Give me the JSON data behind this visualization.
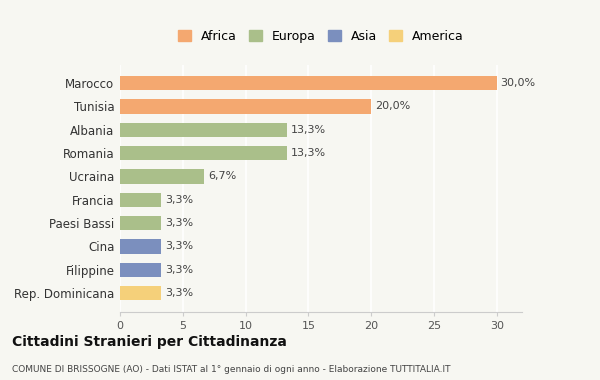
{
  "categories": [
    "Marocco",
    "Tunisia",
    "Albania",
    "Romania",
    "Ucraina",
    "Francia",
    "Paesi Bassi",
    "Cina",
    "Filippine",
    "Rep. Dominicana"
  ],
  "values": [
    30.0,
    20.0,
    13.3,
    13.3,
    6.7,
    3.3,
    3.3,
    3.3,
    3.3,
    3.3
  ],
  "labels": [
    "30,0%",
    "20,0%",
    "13,3%",
    "13,3%",
    "6,7%",
    "3,3%",
    "3,3%",
    "3,3%",
    "3,3%",
    "3,3%"
  ],
  "colors": [
    "#F4A870",
    "#F4A870",
    "#AABF8A",
    "#AABF8A",
    "#AABF8A",
    "#AABF8A",
    "#AABF8A",
    "#7B8FBE",
    "#7B8FBE",
    "#F5D07A"
  ],
  "legend": {
    "labels": [
      "Africa",
      "Europa",
      "Asia",
      "America"
    ],
    "colors": [
      "#F4A870",
      "#AABF8A",
      "#7B8FBE",
      "#F5D07A"
    ]
  },
  "title": "Cittadini Stranieri per Cittadinanza",
  "subtitle": "COMUNE DI BRISSOGNE (AO) - Dati ISTAT al 1° gennaio di ogni anno - Elaborazione TUTTITALIA.IT",
  "xlim": [
    0,
    32
  ],
  "xticks": [
    0,
    5,
    10,
    15,
    20,
    25,
    30
  ],
  "background_color": "#F7F7F2",
  "grid_color": "#FFFFFF"
}
